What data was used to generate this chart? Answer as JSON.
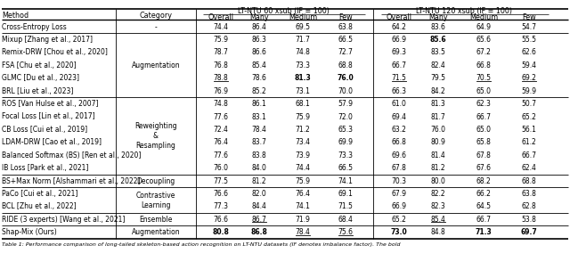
{
  "col_labels": [
    "Method",
    "Category",
    "Overall",
    "Many",
    "Medium",
    "Few",
    "Overall",
    "Many",
    "Medium",
    "Few"
  ],
  "hdr1_60": "LT-NTU 60 xsub (IF = 100)",
  "hdr1_120": "LT-NTU 120 xsub (IF = 100)",
  "rows": [
    {
      "method": "Cross-Entropy Loss",
      "category": "-",
      "data": [
        "74.4",
        "86.4",
        "69.5",
        "63.8",
        "64.2",
        "83.6",
        "64.9",
        "54.7"
      ],
      "bold": [
        false,
        false,
        false,
        false,
        false,
        false,
        false,
        false
      ],
      "underline": [
        false,
        false,
        false,
        false,
        false,
        false,
        false,
        false
      ]
    },
    {
      "method": "Mixup [Zhang et al., 2017]",
      "category": "Augmentation",
      "data": [
        "75.9",
        "86.3",
        "71.7",
        "66.5",
        "66.9",
        "85.6",
        "65.6",
        "55.5"
      ],
      "bold": [
        false,
        false,
        false,
        false,
        false,
        true,
        false,
        false
      ],
      "underline": [
        false,
        false,
        false,
        false,
        false,
        false,
        false,
        false
      ]
    },
    {
      "method": "Remix-DRW [Chou et al., 2020]",
      "category": "Augmentation",
      "data": [
        "78.7",
        "86.6",
        "74.8",
        "72.7",
        "69.3",
        "83.5",
        "67.2",
        "62.6"
      ],
      "bold": [
        false,
        false,
        false,
        false,
        false,
        false,
        false,
        false
      ],
      "underline": [
        false,
        false,
        false,
        false,
        false,
        false,
        false,
        false
      ]
    },
    {
      "method": "FSA [Chu et al., 2020]",
      "category": "Augmentation",
      "data": [
        "76.8",
        "85.4",
        "73.3",
        "68.8",
        "66.7",
        "82.4",
        "66.8",
        "59.4"
      ],
      "bold": [
        false,
        false,
        false,
        false,
        false,
        false,
        false,
        false
      ],
      "underline": [
        false,
        false,
        false,
        false,
        false,
        false,
        false,
        false
      ]
    },
    {
      "method": "GLMC [Du et al., 2023]",
      "category": "Augmentation",
      "data": [
        "78.8",
        "78.6",
        "81.3",
        "76.0",
        "71.5",
        "79.5",
        "70.5",
        "69.2"
      ],
      "bold": [
        false,
        false,
        true,
        true,
        false,
        false,
        false,
        false
      ],
      "underline": [
        true,
        false,
        false,
        false,
        true,
        false,
        true,
        true
      ]
    },
    {
      "method": "BRL [Liu et al., 2023]",
      "category": "Augmentation",
      "data": [
        "76.9",
        "85.2",
        "73.1",
        "70.0",
        "66.3",
        "84.2",
        "65.0",
        "59.9"
      ],
      "bold": [
        false,
        false,
        false,
        false,
        false,
        false,
        false,
        false
      ],
      "underline": [
        false,
        false,
        false,
        false,
        false,
        false,
        false,
        false
      ]
    },
    {
      "method": "ROS [Van Hulse et al., 2007]",
      "category": "Reweighting\n&\nResampling",
      "data": [
        "74.8",
        "86.1",
        "68.1",
        "57.9",
        "61.0",
        "81.3",
        "62.3",
        "50.7"
      ],
      "bold": [
        false,
        false,
        false,
        false,
        false,
        false,
        false,
        false
      ],
      "underline": [
        false,
        false,
        false,
        false,
        false,
        false,
        false,
        false
      ]
    },
    {
      "method": "Focal Loss [Lin et al., 2017]",
      "category": "Reweighting\n&\nResampling",
      "data": [
        "77.6",
        "83.1",
        "75.9",
        "72.0",
        "69.4",
        "81.7",
        "66.7",
        "65.2"
      ],
      "bold": [
        false,
        false,
        false,
        false,
        false,
        false,
        false,
        false
      ],
      "underline": [
        false,
        false,
        false,
        false,
        false,
        false,
        false,
        false
      ]
    },
    {
      "method": "CB Loss [Cui et al., 2019]",
      "category": "Reweighting\n&\nResampling",
      "data": [
        "72.4",
        "78.4",
        "71.2",
        "65.3",
        "63.2",
        "76.0",
        "65.0",
        "56.1"
      ],
      "bold": [
        false,
        false,
        false,
        false,
        false,
        false,
        false,
        false
      ],
      "underline": [
        false,
        false,
        false,
        false,
        false,
        false,
        false,
        false
      ]
    },
    {
      "method": "LDAM-DRW [Cao et al., 2019]",
      "category": "Reweighting\n&\nResampling",
      "data": [
        "76.4",
        "83.7",
        "73.4",
        "69.9",
        "66.8",
        "80.9",
        "65.8",
        "61.2"
      ],
      "bold": [
        false,
        false,
        false,
        false,
        false,
        false,
        false,
        false
      ],
      "underline": [
        false,
        false,
        false,
        false,
        false,
        false,
        false,
        false
      ]
    },
    {
      "method": "Balanced Softmax (BS) [Ren et al., 2020]",
      "category": "Reweighting\n&\nResampling",
      "data": [
        "77.6",
        "83.8",
        "73.9",
        "73.3",
        "69.6",
        "81.4",
        "67.8",
        "66.7"
      ],
      "bold": [
        false,
        false,
        false,
        false,
        false,
        false,
        false,
        false
      ],
      "underline": [
        false,
        false,
        false,
        false,
        false,
        false,
        false,
        false
      ]
    },
    {
      "method": "IB Loss [Park et al., 2021]",
      "category": "Reweighting\n&\nResampling",
      "data": [
        "76.0",
        "84.0",
        "74.4",
        "66.5",
        "67.8",
        "81.2",
        "67.6",
        "62.4"
      ],
      "bold": [
        false,
        false,
        false,
        false,
        false,
        false,
        false,
        false
      ],
      "underline": [
        false,
        false,
        false,
        false,
        false,
        false,
        false,
        false
      ]
    },
    {
      "method": "BS+Max Norm [Alshammari et al., 2022]",
      "category": "Decoupling",
      "data": [
        "77.5",
        "81.2",
        "75.9",
        "74.1",
        "70.3",
        "80.0",
        "68.2",
        "68.8"
      ],
      "bold": [
        false,
        false,
        false,
        false,
        false,
        false,
        false,
        false
      ],
      "underline": [
        false,
        false,
        false,
        false,
        false,
        false,
        false,
        false
      ]
    },
    {
      "method": "PaCo [Cui et al., 2021]",
      "category": "Contrastive\nLearning",
      "data": [
        "76.6",
        "82.0",
        "76.4",
        "69.1",
        "67.9",
        "82.2",
        "66.2",
        "63.8"
      ],
      "bold": [
        false,
        false,
        false,
        false,
        false,
        false,
        false,
        false
      ],
      "underline": [
        false,
        false,
        false,
        false,
        false,
        false,
        false,
        false
      ]
    },
    {
      "method": "BCL [Zhu et al., 2022]",
      "category": "Contrastive\nLearning",
      "data": [
        "77.3",
        "84.4",
        "74.1",
        "71.5",
        "66.9",
        "82.3",
        "64.5",
        "62.8"
      ],
      "bold": [
        false,
        false,
        false,
        false,
        false,
        false,
        false,
        false
      ],
      "underline": [
        false,
        false,
        false,
        false,
        false,
        false,
        false,
        false
      ]
    },
    {
      "method": "RIDE (3 experts) [Wang et al., 2021]",
      "category": "Ensemble",
      "data": [
        "76.6",
        "86.7",
        "71.9",
        "68.4",
        "65.2",
        "85.4",
        "66.7",
        "53.8"
      ],
      "bold": [
        false,
        false,
        false,
        false,
        false,
        false,
        false,
        false
      ],
      "underline": [
        false,
        true,
        false,
        false,
        false,
        true,
        false,
        false
      ]
    },
    {
      "method": "Shap-Mix (Ours)",
      "category": "Augmentation",
      "data": [
        "80.8",
        "86.8",
        "78.4",
        "75.6",
        "73.0",
        "84.8",
        "71.3",
        "69.7"
      ],
      "bold": [
        true,
        true,
        false,
        false,
        true,
        false,
        true,
        true
      ],
      "underline": [
        false,
        false,
        true,
        true,
        false,
        false,
        false,
        false
      ]
    }
  ],
  "groups": [
    {
      "start": 0,
      "end": 0,
      "cat": "-",
      "sep_before": false
    },
    {
      "start": 1,
      "end": 5,
      "cat": "Augmentation",
      "sep_before": true
    },
    {
      "start": 6,
      "end": 11,
      "cat": "Reweighting\n&\nResampling",
      "sep_before": true
    },
    {
      "start": 12,
      "end": 12,
      "cat": "Decoupling",
      "sep_before": true
    },
    {
      "start": 13,
      "end": 14,
      "cat": "Contrastive\nLearning",
      "sep_before": true
    },
    {
      "start": 15,
      "end": 15,
      "cat": "Ensemble",
      "sep_before": true
    },
    {
      "start": 16,
      "end": 16,
      "cat": "Augmentation",
      "sep_before": true
    }
  ],
  "footnote": "Table 1: Performance comparison of long-tailed skeleton-based action recognition on LT-NTU datasets (IF denotes imbalance factor). The bold"
}
